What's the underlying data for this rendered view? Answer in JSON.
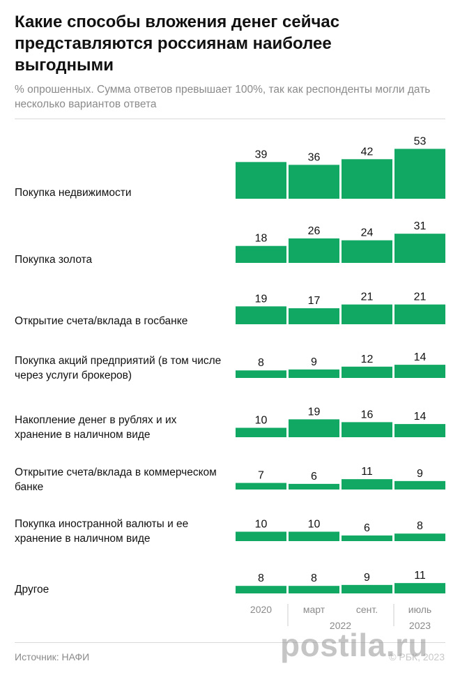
{
  "title": "Какие способы вложения денег сейчас представляются россиянам наиболее выгодными",
  "subtitle": "% опрошенных. Сумма ответов превышает 100%, так как респонденты могли дать несколько вариантов ответа",
  "source": "Источник: НАФИ",
  "copyright": "© РБК, 2023",
  "watermark": "postila.ru",
  "colors": {
    "bar": "#11a864",
    "text": "#111111",
    "muted": "#8a8a8a",
    "rule": "#d9d9d9"
  },
  "chart_data": {
    "type": "bar",
    "columns": [
      "2020",
      "март",
      "сент.",
      "июль"
    ],
    "column_groups": [
      {
        "label": "2022",
        "columns": [
          1,
          2
        ]
      },
      {
        "label": "2023",
        "columns": [
          3
        ]
      }
    ],
    "categories": [
      "Покупка недвижимости",
      "Покупка золота",
      "Открытие счета/вклада в госбанке",
      "Покупка акций предприятий (в том числе через услуги брокеров)",
      "Накопление денег в рублях и их хранение в наличном виде",
      "Открытие счета/вклада в коммерческом банке",
      "Покупка иностранной валюты и ее хранение в наличном виде",
      "Другое"
    ],
    "values": [
      [
        39,
        36,
        42,
        53
      ],
      [
        18,
        26,
        24,
        31
      ],
      [
        19,
        17,
        21,
        21
      ],
      [
        8,
        9,
        12,
        14
      ],
      [
        10,
        19,
        16,
        14
      ],
      [
        7,
        6,
        11,
        9
      ],
      [
        10,
        10,
        6,
        8
      ],
      [
        8,
        8,
        9,
        11
      ]
    ],
    "unit": "%"
  }
}
